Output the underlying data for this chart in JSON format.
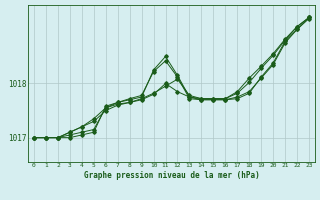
{
  "title": "Graphe pression niveau de la mer (hPa)",
  "xlabel": "Graphe pression niveau de la mer (hPa)",
  "bg_color": "#d6eef0",
  "grid_color": "#b0c8c8",
  "line_color": "#1a5c1a",
  "marker_color": "#1a5c1a",
  "hours": [
    0,
    1,
    2,
    3,
    4,
    5,
    6,
    7,
    8,
    9,
    10,
    11,
    12,
    13,
    14,
    15,
    16,
    17,
    18,
    19,
    20,
    21,
    22,
    23
  ],
  "series1": [
    1017.0,
    1017.0,
    1017.0,
    1017.05,
    1017.1,
    1017.15,
    1017.55,
    1017.65,
    1017.7,
    1017.75,
    1018.25,
    1018.5,
    1018.15,
    1017.75,
    1017.7,
    1017.7,
    1017.7,
    1017.75,
    1017.85,
    1018.1,
    1018.35,
    1018.75,
    1019.0,
    1019.2
  ],
  "series2": [
    1017.0,
    1017.0,
    1017.0,
    1017.1,
    1017.2,
    1017.3,
    1017.5,
    1017.6,
    1017.65,
    1017.7,
    1017.8,
    1018.0,
    1017.85,
    1017.75,
    1017.72,
    1017.72,
    1017.72,
    1017.82,
    1018.02,
    1018.28,
    1018.52,
    1018.8,
    1019.05,
    1019.22
  ],
  "series3": [
    1017.0,
    1017.0,
    1017.0,
    1017.1,
    1017.2,
    1017.35,
    1017.55,
    1017.62,
    1017.65,
    1017.72,
    1017.82,
    1017.95,
    1018.08,
    1017.78,
    1017.72,
    1017.72,
    1017.72,
    1017.85,
    1018.1,
    1018.32,
    1018.55,
    1018.82,
    1019.05,
    1019.22
  ],
  "series4": [
    1017.0,
    1017.0,
    1017.0,
    1017.0,
    1017.05,
    1017.1,
    1017.58,
    1017.65,
    1017.72,
    1017.78,
    1018.22,
    1018.42,
    1018.12,
    1017.72,
    1017.7,
    1017.7,
    1017.7,
    1017.72,
    1017.82,
    1018.12,
    1018.38,
    1018.78,
    1019.0,
    1019.22
  ],
  "yticks": [
    1017,
    1018
  ],
  "ylim": [
    1016.55,
    1019.45
  ],
  "xlim": [
    -0.5,
    23.5
  ]
}
